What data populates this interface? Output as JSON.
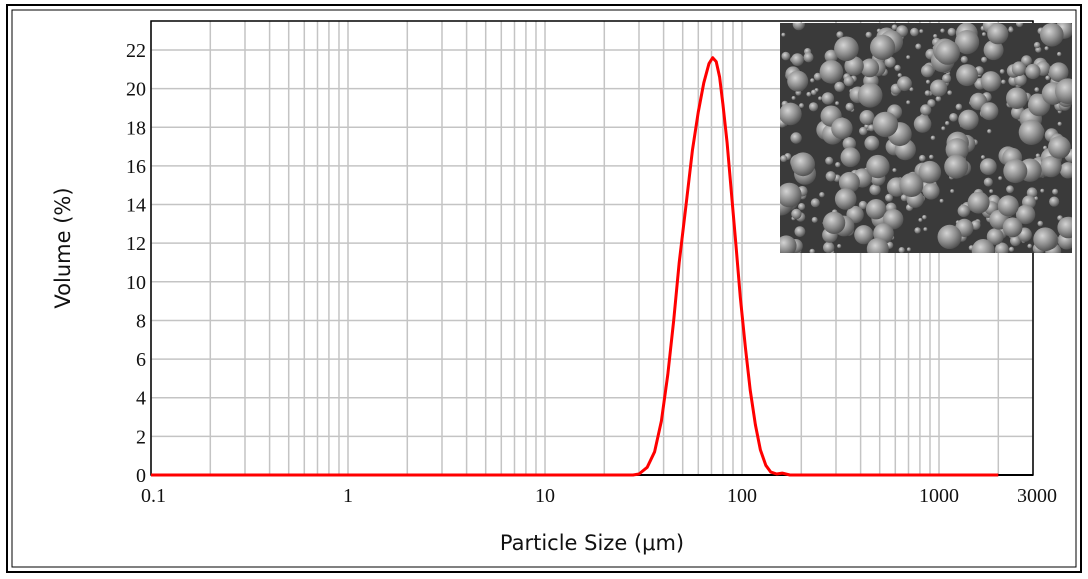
{
  "chart_data": {
    "type": "line",
    "xlabel": "Particle Size (μm)",
    "ylabel": "Volume (%)",
    "x_scale": "log",
    "xlim": [
      0.1,
      3000
    ],
    "ylim": [
      0,
      23.5
    ],
    "x_ticks": [
      0.1,
      1,
      10,
      100,
      1000,
      3000
    ],
    "x_tick_labels": [
      "0.1",
      "1",
      "10",
      "100",
      "1000",
      "3000"
    ],
    "y_ticks": [
      0,
      2,
      4,
      6,
      8,
      10,
      12,
      14,
      16,
      18,
      20,
      22
    ],
    "y_tick_labels": [
      "0",
      "2",
      "4",
      "6",
      "8",
      "10",
      "12",
      "14",
      "16",
      "18",
      "20",
      "22"
    ],
    "grid": true,
    "line_color": "#ff0000",
    "series": [
      {
        "x": [
          0.1,
          1,
          10,
          28,
          30,
          33,
          36,
          39,
          42,
          45,
          48,
          52,
          56,
          60,
          64,
          68,
          71,
          74,
          77,
          80,
          84,
          88,
          93,
          98,
          104,
          110,
          117,
          124,
          132,
          140,
          150,
          160,
          175,
          200,
          500,
          1000,
          2000
        ],
        "y": [
          0,
          0,
          0,
          0,
          0.05,
          0.4,
          1.2,
          2.8,
          5.2,
          8.0,
          11.0,
          14.0,
          16.8,
          18.8,
          20.3,
          21.3,
          21.6,
          21.4,
          20.6,
          19.2,
          17.2,
          14.8,
          12.0,
          9.2,
          6.6,
          4.4,
          2.6,
          1.3,
          0.5,
          0.15,
          0.05,
          0.1,
          0,
          0,
          0,
          0,
          0
        ]
      }
    ]
  },
  "inset": {
    "type": "sem-micrograph",
    "background": "#3a3a3a",
    "particle_color": "#8c8c8c"
  }
}
